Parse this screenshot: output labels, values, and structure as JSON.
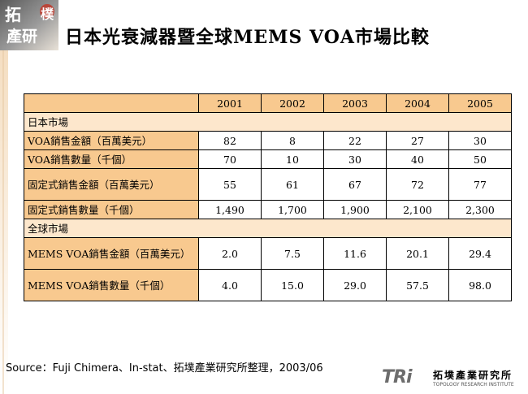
{
  "logo": {
    "line1": "拓",
    "line2": "產研",
    "mark": "樸"
  },
  "title": "日本光衰減器暨全球MEMS VOA市場比較",
  "table": {
    "years": [
      "2001",
      "2002",
      "2003",
      "2004",
      "2005"
    ],
    "sections": [
      {
        "label": "日本市場",
        "rows": [
          {
            "label": "VOA銷售金額（百萬美元）",
            "values": [
              "82",
              "8",
              "22",
              "27",
              "30"
            ]
          },
          {
            "label": "VOA銷售數量（千個）",
            "values": [
              "70",
              "10",
              "30",
              "40",
              "50"
            ]
          },
          {
            "label": "固定式銷售金額（百萬美元）",
            "values": [
              "55",
              "61",
              "67",
              "72",
              "77"
            ]
          },
          {
            "label": "固定式銷售數量（千個）",
            "values": [
              "1,490",
              "1,700",
              "1,900",
              "2,100",
              "2,300"
            ]
          }
        ]
      },
      {
        "label": "全球市場",
        "rows": [
          {
            "label": "MEMS VOA銷售金額（百萬美元）",
            "values": [
              "2.0",
              "7.5",
              "11.6",
              "20.1",
              "29.4"
            ]
          },
          {
            "label": "MEMS VOA銷售數量（千個）",
            "values": [
              "4.0",
              "15.0",
              "29.0",
              "57.5",
              "98.0"
            ]
          }
        ]
      }
    ]
  },
  "source": "Source：Fuji Chimera、In-stat、拓墣產業研究所整理，2003/06",
  "footer_logo": {
    "letters": "TRi",
    "name": "拓墣產業研究所",
    "sub": "TOPOLOGY RESEARCH INSTITUTE"
  },
  "colors": {
    "header_fill": "#f8c98f",
    "section_fill": "#fde7cc",
    "logo_red": "#c0392b"
  }
}
